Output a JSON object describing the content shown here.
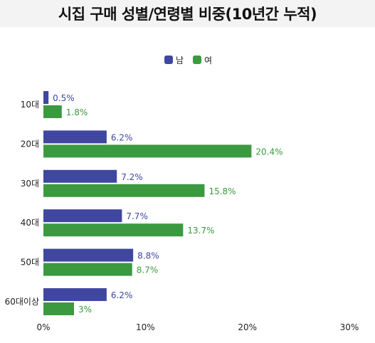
{
  "chart_data": {
    "type": "bar",
    "orientation": "horizontal",
    "title": "시집 구매 성별/연령별 비중(10년간 누적)",
    "categories": [
      "10대",
      "20대",
      "30대",
      "40대",
      "50대",
      "60대이상"
    ],
    "series": [
      {
        "name": "남",
        "color": "#3f47a0",
        "values": [
          0.5,
          6.2,
          7.2,
          7.7,
          8.8,
          6.2
        ],
        "labels": [
          "0.5%",
          "6.2%",
          "7.2%",
          "7.7%",
          "8.8%",
          "6.2%"
        ]
      },
      {
        "name": "여",
        "color": "#3b9a3f",
        "values": [
          1.8,
          20.4,
          15.8,
          13.7,
          8.7,
          3
        ],
        "labels": [
          "1.8%",
          "20.4%",
          "15.8%",
          "13.7%",
          "8.7%",
          "3%"
        ]
      }
    ],
    "xlim": [
      0,
      30
    ],
    "xticks": [
      0,
      10,
      20,
      30
    ],
    "xtick_labels": [
      "0%",
      "10%",
      "20%",
      "30%"
    ],
    "legend_position": "top-center",
    "grid": false
  }
}
